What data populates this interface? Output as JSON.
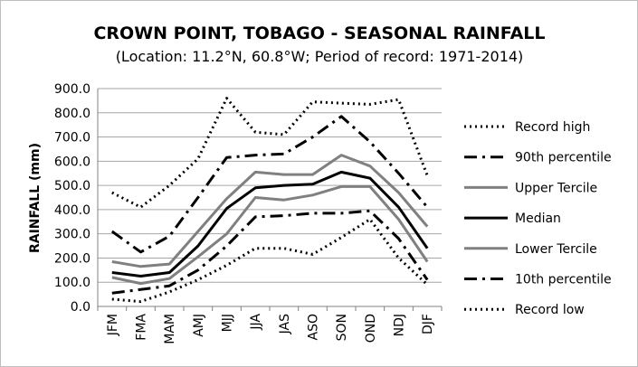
{
  "chart_data": {
    "type": "line",
    "title": "CROWN POINT, TOBAGO - SEASONAL RAINFALL",
    "subtitle": "(Location: 11.2°N, 60.8°W; Period of record: 1971-2014)",
    "ylabel": "RAINFALL (mm)",
    "xlabel": "",
    "ylim": [
      0,
      900
    ],
    "yticks": [
      "0.0",
      "100.0",
      "200.0",
      "300.0",
      "400.0",
      "500.0",
      "600.0",
      "700.0",
      "800.0",
      "900.0"
    ],
    "categories": [
      "JFM",
      "FMA",
      "MAM",
      "AMJ",
      "MJJ",
      "JJA",
      "JAS",
      "ASO",
      "SON",
      "OND",
      "NDJ",
      "DJF"
    ],
    "grid": true,
    "legend_position": "right",
    "series": [
      {
        "name": "Record high",
        "style": "dotted",
        "color": "#000000",
        "values": [
          470,
          410,
          500,
          610,
          860,
          720,
          710,
          845,
          840,
          835,
          855,
          540
        ]
      },
      {
        "name": "90th percentile",
        "style": "dashdot",
        "color": "#000000",
        "values": [
          310,
          225,
          290,
          450,
          615,
          625,
          630,
          700,
          785,
          680,
          550,
          410
        ]
      },
      {
        "name": "Upper Tercile",
        "style": "solid",
        "color": "#808080",
        "values": [
          185,
          165,
          175,
          310,
          445,
          555,
          545,
          545,
          625,
          580,
          470,
          330
        ]
      },
      {
        "name": "Median",
        "style": "solid",
        "color": "#000000",
        "values": [
          140,
          125,
          140,
          250,
          405,
          490,
          500,
          505,
          555,
          530,
          410,
          240
        ]
      },
      {
        "name": "Lower Tercile",
        "style": "solid",
        "color": "#808080",
        "values": [
          120,
          95,
          115,
          205,
          300,
          450,
          440,
          460,
          495,
          495,
          360,
          185
        ]
      },
      {
        "name": "10th percentile",
        "style": "dashdot",
        "color": "#000000",
        "values": [
          55,
          70,
          85,
          150,
          250,
          370,
          375,
          385,
          385,
          395,
          280,
          110
        ]
      },
      {
        "name": "Record low",
        "style": "dotted",
        "color": "#000000",
        "values": [
          30,
          20,
          60,
          110,
          170,
          240,
          240,
          215,
          285,
          360,
          200,
          90
        ]
      }
    ]
  }
}
